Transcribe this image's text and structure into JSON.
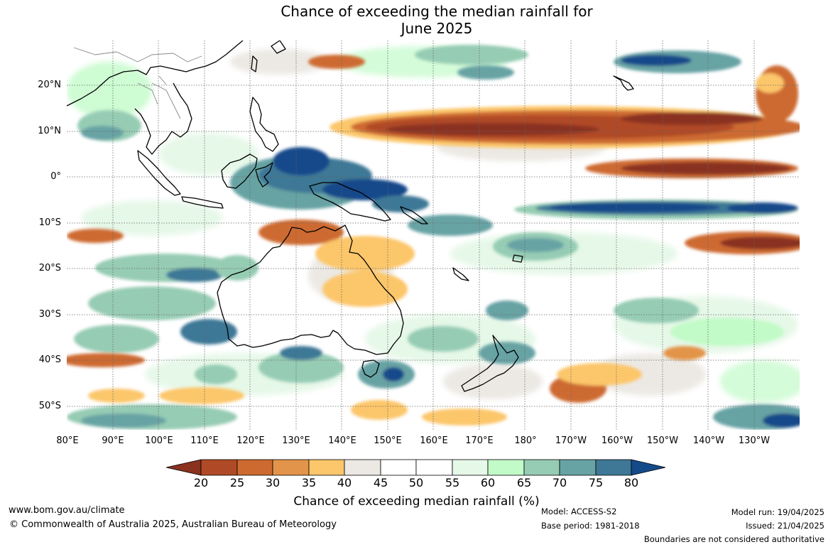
{
  "title": {
    "line1": "Chance of exceeding the median rainfall for",
    "line2": "June 2025"
  },
  "lat_labels": [
    "20°N",
    "10°N",
    "0°",
    "10°S",
    "20°S",
    "30°S",
    "40°S",
    "50°S"
  ],
  "lon_labels": [
    "80°E",
    "90°E",
    "100°E",
    "110°E",
    "120°E",
    "130°E",
    "140°E",
    "150°E",
    "160°E",
    "170°E",
    "180°",
    "170°W",
    "160°W",
    "150°W",
    "140°W",
    "130°W"
  ],
  "colorbar": {
    "title": "Chance of exceeding median rainfall (%)",
    "ticks": [
      "20",
      "25",
      "30",
      "35",
      "40",
      "45",
      "50",
      "55",
      "60",
      "65",
      "70",
      "75",
      "80"
    ],
    "colors": [
      "#8a3120",
      "#b04a26",
      "#cd6a30",
      "#e2944a",
      "#fcc66b",
      "#ece9e4",
      "#ffffff",
      "#ffffff",
      "#e6f8e8",
      "#c2fbc8",
      "#96ccb4",
      "#67a3a4",
      "#3e7896",
      "#144a8a"
    ]
  },
  "footer": {
    "website": "www.bom.gov.au/climate",
    "copyright": "© Commonwealth of Australia 2025, Australian Bureau of Meteorology",
    "model": "Model: ACCESS-S2",
    "base_period": "Base period: 1981-2018",
    "model_run": "Model run: 19/04/2025",
    "issued": "Issued: 21/04/2025",
    "disclaimer": "Boundaries are not considered authoritative"
  }
}
